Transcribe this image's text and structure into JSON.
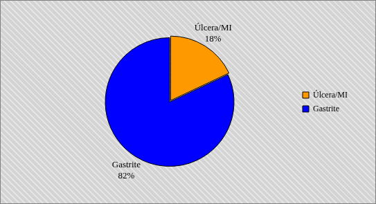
{
  "chart_data": {
    "type": "pie",
    "categories": [
      "Úlcera/MI",
      "Gastrite"
    ],
    "values": [
      18,
      82
    ],
    "value_labels": [
      "18%",
      "82%"
    ],
    "colors": [
      "#ff9900",
      "#0000ff"
    ],
    "legend": "right",
    "data_labels": true
  }
}
